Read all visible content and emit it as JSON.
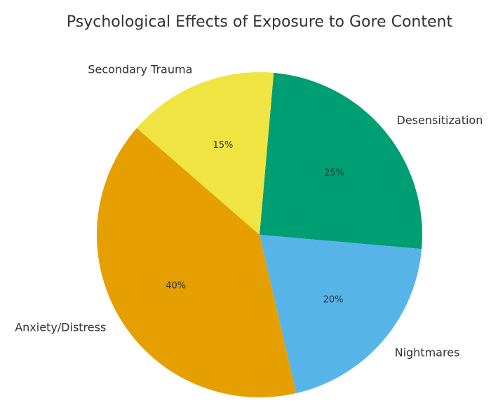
{
  "chart_data": {
    "type": "pie",
    "title": "Psychological Effects of Exposure to Gore Content",
    "slices": [
      {
        "label": "Desensitization",
        "value": 25,
        "pct_label": "25%",
        "color": "#009E73"
      },
      {
        "label": "Nightmares",
        "value": 20,
        "pct_label": "20%",
        "color": "#56B4E9"
      },
      {
        "label": "Anxiety/Distress",
        "value": 40,
        "pct_label": "40%",
        "color": "#E69F00"
      },
      {
        "label": "Secondary Trauma",
        "value": 15,
        "pct_label": "15%",
        "color": "#F0E442"
      }
    ],
    "start_angle_deg": 85,
    "direction": "clockwise",
    "legend": "none"
  }
}
